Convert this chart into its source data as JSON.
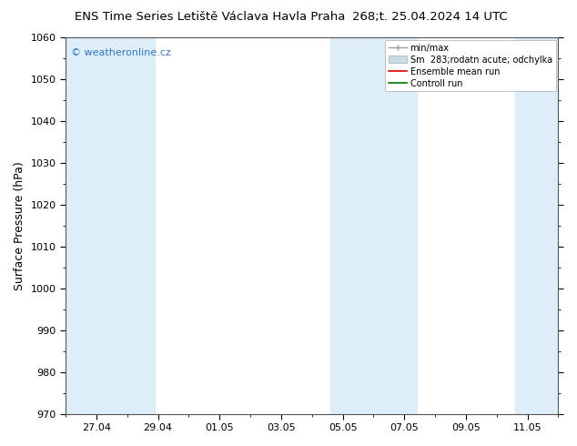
{
  "title_left": "ENS Time Series Letiště Václava Havla Praha",
  "title_right": "268;t. 25.04.2024 14 UTC",
  "ylabel": "Surface Pressure (hPa)",
  "ylim": [
    970,
    1060
  ],
  "yticks": [
    970,
    980,
    990,
    1000,
    1010,
    1020,
    1030,
    1040,
    1050,
    1060
  ],
  "xtick_labels": [
    "27.04",
    "29.04",
    "01.05",
    "03.05",
    "05.05",
    "07.05",
    "09.05",
    "11.05"
  ],
  "bg_color": "#ffffff",
  "plot_bg_color": "#ffffff",
  "shaded_color": "#ddeef8",
  "watermark": "© weatheronline.cz",
  "watermark_color": "#3377bb",
  "legend_labels": [
    "min/max",
    "Sm  283;rodatn acute; odchylka",
    "Ensemble mean run",
    "Controll run"
  ],
  "minmax_color": "#999999",
  "sm_color": "#c8dce8",
  "ensemble_color": "#dd0000",
  "control_color": "#007700"
}
